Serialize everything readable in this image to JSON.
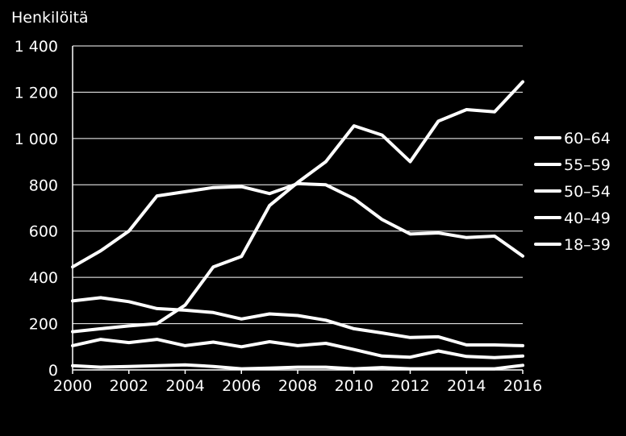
{
  "chart_data": {
    "type": "line",
    "ylabel": "Henkilöitä",
    "xlabel": "",
    "title": "",
    "ylim": [
      0,
      1400
    ],
    "xlim": [
      2000,
      2016
    ],
    "y_ticks": [
      0,
      200,
      400,
      600,
      800,
      1000,
      1200,
      1400
    ],
    "y_tick_labels": [
      "0",
      "200",
      "400",
      "600",
      "800",
      "1 000",
      "1 200",
      "1 400"
    ],
    "x_ticks": [
      2000,
      2002,
      2004,
      2006,
      2008,
      2010,
      2012,
      2014,
      2016
    ],
    "x_tick_labels": [
      "2000",
      "2002",
      "2004",
      "2006",
      "2008",
      "2010",
      "2012",
      "2014",
      "2016"
    ],
    "grid": true,
    "legend_position": "right",
    "line_color": "#ffffff",
    "background_color": "#000000",
    "x": [
      2000,
      2001,
      2002,
      2003,
      2004,
      2005,
      2006,
      2007,
      2008,
      2009,
      2010,
      2011,
      2012,
      2013,
      2014,
      2015,
      2016
    ],
    "series": [
      {
        "name": "60–64",
        "values": [
          165,
          178,
          190,
          200,
          280,
          445,
          490,
          710,
          810,
          900,
          1055,
          1015,
          900,
          1075,
          1125,
          1115,
          1245
        ]
      },
      {
        "name": "55–59",
        "values": [
          445,
          515,
          600,
          752,
          770,
          788,
          792,
          762,
          805,
          800,
          740,
          650,
          587,
          592,
          572,
          578,
          492
        ]
      },
      {
        "name": "50–54",
        "values": [
          298,
          312,
          295,
          265,
          258,
          248,
          220,
          242,
          235,
          215,
          178,
          160,
          140,
          143,
          108,
          108,
          105
        ]
      },
      {
        "name": "40–49",
        "values": [
          105,
          132,
          118,
          132,
          105,
          120,
          100,
          122,
          105,
          115,
          88,
          60,
          55,
          82,
          58,
          53,
          60
        ]
      },
      {
        "name": "18–39",
        "values": [
          18,
          12,
          15,
          18,
          22,
          15,
          5,
          8,
          12,
          12,
          5,
          10,
          5,
          5,
          5,
          5,
          20
        ]
      }
    ]
  }
}
